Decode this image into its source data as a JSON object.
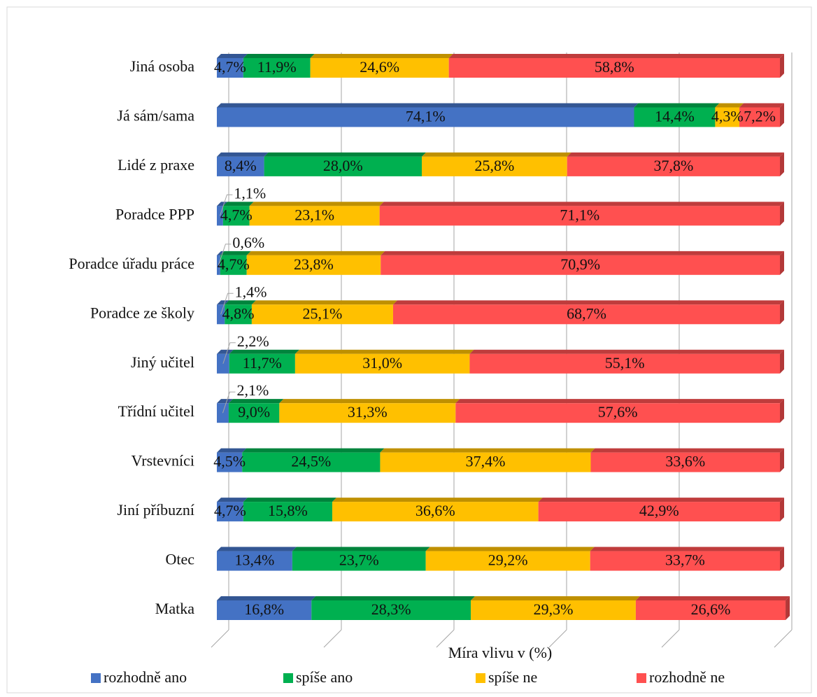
{
  "chart_data": {
    "type": "stacked_bar_horizontal",
    "x_label": "Míra vlivu v (%)",
    "categories": [
      "Jiná osoba",
      "Já sám/sama",
      "Lidé z praxe",
      "Poradce PPP",
      "Poradce úřadu práce",
      "Poradce ze školy",
      "Jiný učitel",
      "Třídní učitel",
      "Vrstevníci",
      "Jiní příbuzní",
      "Otec",
      "Matka"
    ],
    "series": [
      {
        "name": "rozhodně ano",
        "color": "#4472c4",
        "values": [
          4.7,
          74.1,
          8.4,
          1.1,
          0.6,
          1.4,
          2.2,
          2.1,
          4.5,
          4.7,
          13.4,
          16.8
        ],
        "value_labels": [
          "4,7%",
          "74,1%",
          "8,4%",
          "1,1%",
          "0,6%",
          "1,4%",
          "2,2%",
          "2,1%",
          "4,5%",
          "4,7%",
          "13,4%",
          "16,8%"
        ]
      },
      {
        "name": "spíše ano",
        "color": "#00b050",
        "values": [
          11.9,
          14.4,
          28.0,
          4.7,
          4.7,
          4.8,
          11.7,
          9.0,
          24.5,
          15.8,
          23.7,
          28.3
        ],
        "value_labels": [
          "11,9%",
          "14,4%",
          "28,0%",
          "4,7%",
          "4,7%",
          "4,8%",
          "11,7%",
          "9,0%",
          "24,5%",
          "15,8%",
          "23,7%",
          "28,3%"
        ]
      },
      {
        "name": "spíše ne",
        "color": "#ffc000",
        "values": [
          24.6,
          4.3,
          25.8,
          23.1,
          23.8,
          25.1,
          31.0,
          31.3,
          37.4,
          36.6,
          29.2,
          29.3
        ],
        "value_labels": [
          "24,6%",
          "4,3%",
          "25,8%",
          "23,1%",
          "23,8%",
          "25,1%",
          "31,0%",
          "31,3%",
          "37,4%",
          "36,6%",
          "29,2%",
          "29,3%"
        ]
      },
      {
        "name": "rozhodně ne",
        "color": "#ff5050",
        "values": [
          58.8,
          7.2,
          37.8,
          71.1,
          70.9,
          68.7,
          55.1,
          57.6,
          33.6,
          42.9,
          33.7,
          26.6
        ],
        "value_labels": [
          "58,8%",
          "7,2%",
          "37,8%",
          "71,1%",
          "70,9%",
          "68,7%",
          "55,1%",
          "57,6%",
          "33,6%",
          "42,9%",
          "33,7%",
          "26,6%"
        ]
      }
    ],
    "xlim": [
      0,
      100
    ],
    "xticks": [
      0,
      20,
      40,
      60,
      80,
      100
    ],
    "grid": true,
    "legend": "bottom"
  }
}
